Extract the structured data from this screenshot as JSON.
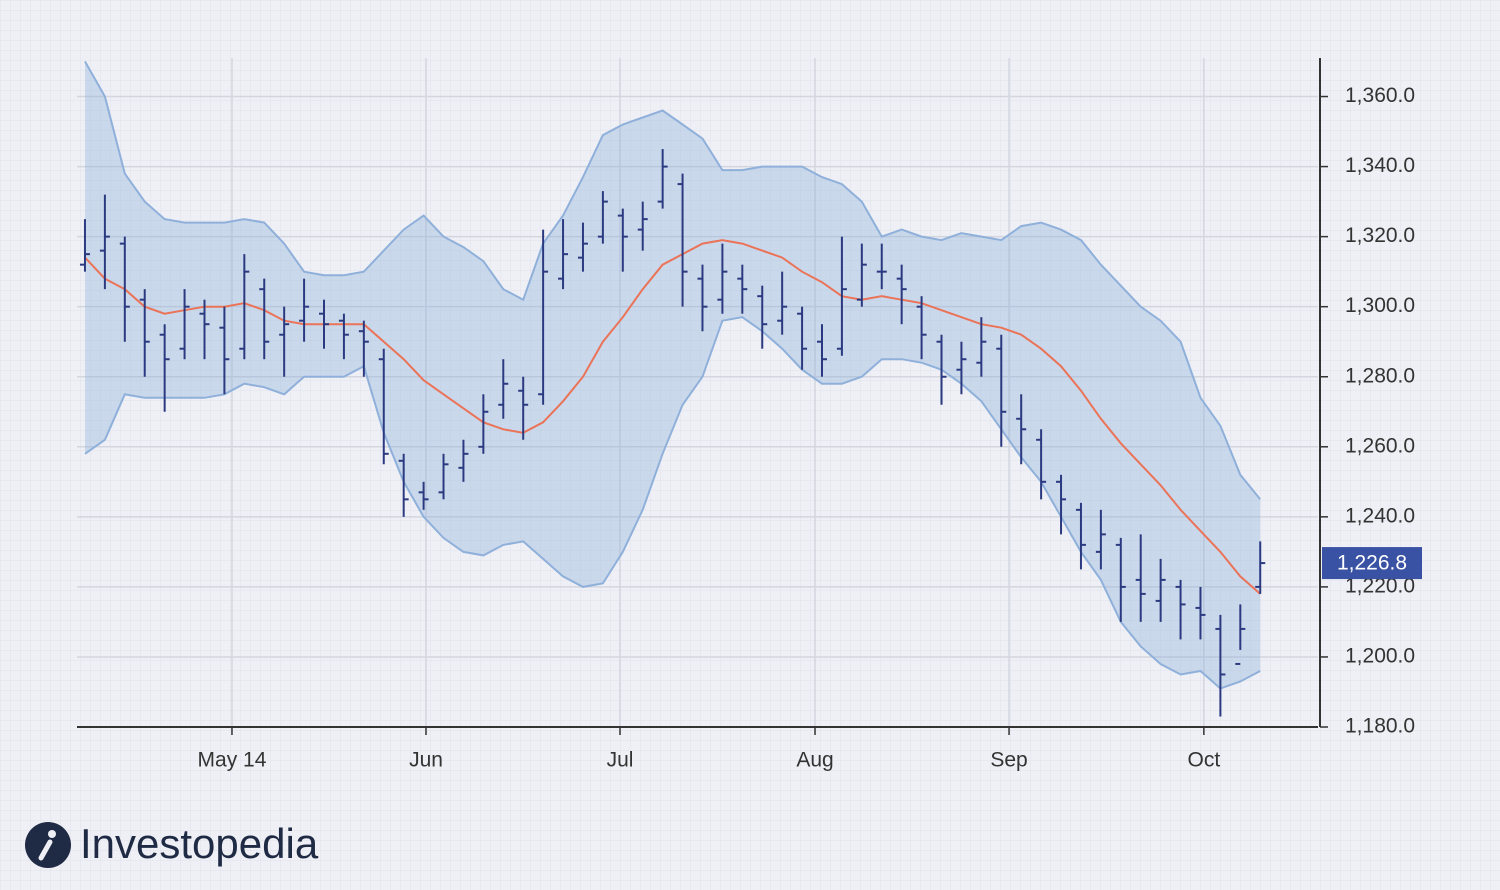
{
  "chart_data": {
    "type": "ohlc",
    "ylim": [
      1180,
      1371
    ],
    "yticks": [
      {
        "value": 1180,
        "label": "1,180.0"
      },
      {
        "value": 1200,
        "label": "1,200.0"
      },
      {
        "value": 1220,
        "label": "1,220.0"
      },
      {
        "value": 1240,
        "label": "1,240.0"
      },
      {
        "value": 1260,
        "label": "1,260.0"
      },
      {
        "value": 1280,
        "label": "1,280.0"
      },
      {
        "value": 1300,
        "label": "1,300.0"
      },
      {
        "value": 1320,
        "label": "1,320.0"
      },
      {
        "value": 1340,
        "label": "1,340.0"
      },
      {
        "value": 1360,
        "label": "1,360.0"
      }
    ],
    "xlim": [
      -0.4,
      61.9
    ],
    "xticks": [
      {
        "value": 7.38,
        "label": "May 14"
      },
      {
        "value": 17.12,
        "label": "Jun"
      },
      {
        "value": 26.86,
        "label": "Jul"
      },
      {
        "value": 36.65,
        "label": "Aug"
      },
      {
        "value": 46.39,
        "label": "Sep"
      },
      {
        "value": 56.17,
        "label": "Oct"
      }
    ],
    "grid": true,
    "bar_color": "#2b3a80",
    "ohlc": {
      "open": [
        1312,
        1316,
        1318,
        1302,
        1292,
        1288,
        1298,
        1294,
        1288,
        1305,
        1292,
        1296,
        1298,
        1296,
        1293,
        1285,
        1256,
        1247,
        1247,
        1254,
        1260,
        1272,
        1276,
        1275,
        1308,
        1314,
        1320,
        1326,
        1322,
        1330,
        1335,
        1308,
        1302,
        1308,
        1303,
        1296,
        1298,
        1290,
        1288,
        1302,
        1310,
        1308,
        1300,
        1290,
        1282,
        1284,
        1288,
        1268,
        1262,
        1250,
        1242,
        1230,
        1232,
        1222,
        1216,
        1220,
        1214,
        1208,
        1198,
        1220
      ],
      "high": [
        1325,
        1332,
        1320,
        1305,
        1295,
        1305,
        1302,
        1300,
        1315,
        1308,
        1300,
        1308,
        1302,
        1298,
        1296,
        1288,
        1258,
        1250,
        1258,
        1262,
        1275,
        1285,
        1280,
        1322,
        1325,
        1324,
        1333,
        1328,
        1330,
        1345,
        1338,
        1312,
        1318,
        1312,
        1306,
        1310,
        1300,
        1295,
        1320,
        1318,
        1318,
        1312,
        1303,
        1292,
        1290,
        1297,
        1292,
        1275,
        1265,
        1252,
        1244,
        1242,
        1234,
        1235,
        1228,
        1222,
        1220,
        1212,
        1215,
        1233
      ],
      "low": [
        1310,
        1305,
        1290,
        1280,
        1270,
        1285,
        1285,
        1275,
        1285,
        1285,
        1280,
        1290,
        1288,
        1285,
        1280,
        1255,
        1240,
        1242,
        1245,
        1250,
        1258,
        1268,
        1262,
        1272,
        1305,
        1310,
        1318,
        1310,
        1316,
        1328,
        1300,
        1293,
        1298,
        1298,
        1288,
        1292,
        1282,
        1280,
        1286,
        1300,
        1305,
        1295,
        1285,
        1272,
        1275,
        1280,
        1260,
        1255,
        1245,
        1235,
        1225,
        1225,
        1210,
        1210,
        1210,
        1205,
        1205,
        1183,
        1202,
        1218
      ],
      "close": [
        1315,
        1320,
        1300,
        1290,
        1285,
        1300,
        1295,
        1285,
        1310,
        1290,
        1295,
        1300,
        1295,
        1292,
        1290,
        1258,
        1245,
        1245,
        1255,
        1258,
        1270,
        1278,
        1272,
        1310,
        1315,
        1318,
        1330,
        1320,
        1325,
        1340,
        1310,
        1300,
        1310,
        1305,
        1295,
        1300,
        1288,
        1285,
        1305,
        1312,
        1310,
        1305,
        1292,
        1280,
        1285,
        1290,
        1270,
        1265,
        1250,
        1245,
        1232,
        1235,
        1220,
        1218,
        1222,
        1215,
        1212,
        1195,
        1208,
        1226.8
      ]
    },
    "bands": {
      "band_color": "#8fb0da",
      "middle_color": "#ea7358",
      "upper": [
        1370,
        1360,
        1338,
        1330,
        1325,
        1324,
        1324,
        1324,
        1325,
        1324,
        1318,
        1310,
        1309,
        1309,
        1310,
        1316,
        1322,
        1326,
        1320,
        1317,
        1313,
        1305,
        1302,
        1318,
        1326,
        1337,
        1349,
        1352,
        1354,
        1356,
        1352,
        1348,
        1339,
        1339,
        1340,
        1340,
        1340,
        1337,
        1335,
        1330,
        1320,
        1322,
        1320,
        1319,
        1321,
        1320,
        1319,
        1323,
        1324,
        1322,
        1319,
        1312,
        1306,
        1300,
        1296,
        1290,
        1274,
        1266,
        1252,
        1245
      ],
      "middle": [
        1314,
        1308,
        1305,
        1300,
        1298,
        1299,
        1300,
        1300,
        1301,
        1299,
        1296,
        1295,
        1295,
        1295,
        1295,
        1290,
        1285,
        1279,
        1275,
        1271,
        1267,
        1265,
        1264,
        1267,
        1273,
        1280,
        1290,
        1297,
        1305,
        1312,
        1315,
        1318,
        1319,
        1318,
        1316,
        1314,
        1310,
        1307,
        1303,
        1302,
        1303,
        1302,
        1301,
        1299,
        1297,
        1295,
        1294,
        1292,
        1288,
        1283,
        1276,
        1268,
        1261,
        1255,
        1249,
        1242,
        1236,
        1230,
        1223,
        1218
      ],
      "lower": [
        1258,
        1262,
        1275,
        1274,
        1274,
        1274,
        1274,
        1275,
        1278,
        1277,
        1275,
        1280,
        1280,
        1280,
        1283,
        1264,
        1250,
        1240,
        1234,
        1230,
        1229,
        1232,
        1233,
        1228,
        1223,
        1220,
        1221,
        1230,
        1242,
        1258,
        1272,
        1280,
        1296,
        1297,
        1293,
        1288,
        1282,
        1278,
        1278,
        1280,
        1285,
        1285,
        1284,
        1282,
        1278,
        1273,
        1265,
        1257,
        1250,
        1240,
        1230,
        1222,
        1210,
        1203,
        1198,
        1195,
        1196,
        1191,
        1193,
        1196
      ]
    },
    "last_price": {
      "value": 1226.8,
      "label": "1,226.8",
      "color": "#3a52a3"
    }
  },
  "logo": "Investopedia"
}
